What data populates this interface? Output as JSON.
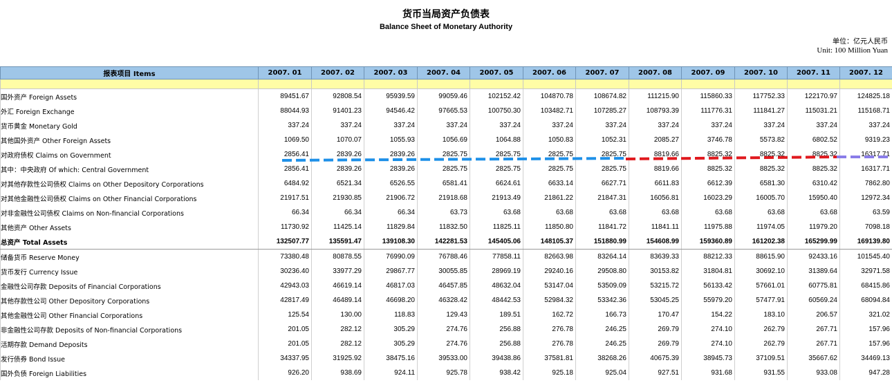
{
  "title_cn": "货币当局资产负债表",
  "title_en": "Balance Sheet of  Monetary Authority",
  "unit_cn": "单位：亿元人民币",
  "unit_en": "Unit: 100 Million Yuan",
  "header": {
    "items_label": "报表项目 Items",
    "months": [
      "2007. 01",
      "2007. 02",
      "2007. 03",
      "2007. 04",
      "2007. 05",
      "2007. 06",
      "2007. 07",
      "2007. 08",
      "2007. 09",
      "2007. 10",
      "2007. 11",
      "2007. 12"
    ]
  },
  "rows": [
    {
      "label": "国外资产  Foreign Assets",
      "indent": 0,
      "values": [
        "89451.67",
        "92808.54",
        "95939.59",
        "99059.46",
        "102152.42",
        "104870.78",
        "108674.82",
        "111215.90",
        "115860.33",
        "117752.33",
        "122170.97",
        "124825.18"
      ]
    },
    {
      "label": "外汇  Foreign Exchange",
      "indent": 1,
      "values": [
        "88044.93",
        "91401.23",
        "94546.42",
        "97665.53",
        "100750.30",
        "103482.71",
        "107285.27",
        "108793.39",
        "111776.31",
        "111841.27",
        "115031.21",
        "115168.71"
      ]
    },
    {
      "label": "货币黄金  Monetary Gold",
      "indent": 1,
      "values": [
        "337.24",
        "337.24",
        "337.24",
        "337.24",
        "337.24",
        "337.24",
        "337.24",
        "337.24",
        "337.24",
        "337.24",
        "337.24",
        "337.24"
      ]
    },
    {
      "label": "其他国外资产  Other Foreign Assets",
      "indent": 1,
      "values": [
        "1069.50",
        "1070.07",
        "1055.93",
        "1056.69",
        "1064.88",
        "1050.83",
        "1052.31",
        "2085.27",
        "3746.78",
        "5573.82",
        "6802.52",
        "9319.23"
      ]
    },
    {
      "label": "对政府债权  Claims on Government",
      "indent": 0,
      "values": [
        "2856.41",
        "2839.26",
        "2839.26",
        "2825.75",
        "2825.75",
        "2825.75",
        "2825.75",
        "8819.66",
        "8825.32",
        "8825.32",
        "8825.32",
        "16317.71"
      ]
    },
    {
      "label": "其中：中央政府  Of which: Central Government",
      "indent": 1,
      "values": [
        "2856.41",
        "2839.26",
        "2839.26",
        "2825.75",
        "2825.75",
        "2825.75",
        "2825.75",
        "8819.66",
        "8825.32",
        "8825.32",
        "8825.32",
        "16317.71"
      ]
    },
    {
      "label": "对其他存款性公司债权  Claims on Other Depository Corporations",
      "indent": 0,
      "values": [
        "6484.92",
        "6521.34",
        "6526.55",
        "6581.41",
        "6624.61",
        "6633.14",
        "6627.71",
        "6611.83",
        "6612.39",
        "6581.30",
        "6310.42",
        "7862.80"
      ]
    },
    {
      "label": "对其他金融性公司债权  Claims on Other Financial Corporations",
      "indent": 0,
      "values": [
        "21917.51",
        "21930.85",
        "21906.72",
        "21918.68",
        "21913.49",
        "21861.22",
        "21847.31",
        "16056.81",
        "16023.29",
        "16005.70",
        "15950.40",
        "12972.34"
      ]
    },
    {
      "label": "对非金融性公司债权  Claims on Non-financial Corporations",
      "indent": 0,
      "values": [
        "66.34",
        "66.34",
        "66.34",
        "63.73",
        "63.68",
        "63.68",
        "63.68",
        "63.68",
        "63.68",
        "63.68",
        "63.68",
        "63.59"
      ]
    },
    {
      "label": "其他资产  Other Assets",
      "indent": 0,
      "values": [
        "11730.92",
        "11425.14",
        "11829.84",
        "11832.50",
        "11825.11",
        "11850.80",
        "11841.72",
        "11841.11",
        "11975.88",
        "11974.05",
        "11979.20",
        "7098.18"
      ]
    },
    {
      "label": "总资产  Total Assets",
      "indent": -1,
      "total": true,
      "values": [
        "132507.77",
        "135591.47",
        "139108.30",
        "142281.53",
        "145405.06",
        "148105.37",
        "151880.99",
        "154608.99",
        "159360.89",
        "161202.38",
        "165299.99",
        "169139.80"
      ]
    },
    {
      "label": "储备货币  Reserve Money",
      "indent": 0,
      "values": [
        "73380.48",
        "80878.55",
        "76990.09",
        "76788.46",
        "77858.11",
        "82663.98",
        "83264.14",
        "83639.33",
        "88212.33",
        "88615.90",
        "92433.16",
        "101545.40"
      ]
    },
    {
      "label": "货币发行  Currency Issue",
      "indent": 1,
      "values": [
        "30236.40",
        "33977.29",
        "29867.77",
        "30055.85",
        "28969.19",
        "29240.16",
        "29508.80",
        "30153.82",
        "31804.81",
        "30692.10",
        "31389.64",
        "32971.58"
      ]
    },
    {
      "label": "金融性公司存款  Deposits of Financial Corporations",
      "indent": 1,
      "values": [
        "42943.03",
        "46619.14",
        "46817.03",
        "46457.85",
        "48632.04",
        "53147.04",
        "53509.09",
        "53215.72",
        "56133.42",
        "57661.01",
        "60775.81",
        "68415.86"
      ]
    },
    {
      "label": "其他存款性公司  Other Depository Corporations",
      "indent": 2,
      "values": [
        "42817.49",
        "46489.14",
        "46698.20",
        "46328.42",
        "48442.53",
        "52984.32",
        "53342.36",
        "53045.25",
        "55979.20",
        "57477.91",
        "60569.24",
        "68094.84"
      ]
    },
    {
      "label": "其他金融性公司  Other Financial Corporations",
      "indent": 2,
      "values": [
        "125.54",
        "130.00",
        "118.83",
        "129.43",
        "189.51",
        "162.72",
        "166.73",
        "170.47",
        "154.22",
        "183.10",
        "206.57",
        "321.02"
      ]
    },
    {
      "label": "非金融性公司存款  Deposits of  Non-financial Corporations",
      "indent": 1,
      "values": [
        "201.05",
        "282.12",
        "305.29",
        "274.76",
        "256.88",
        "276.78",
        "246.25",
        "269.79",
        "274.10",
        "262.79",
        "267.71",
        "157.96"
      ]
    },
    {
      "label": "活期存款  Demand Deposits",
      "indent": 2,
      "values": [
        "201.05",
        "282.12",
        "305.29",
        "274.76",
        "256.88",
        "276.78",
        "246.25",
        "269.79",
        "274.10",
        "262.79",
        "267.71",
        "157.96"
      ]
    },
    {
      "label": "发行债券  Bond Issue",
      "indent": 0,
      "values": [
        "34337.95",
        "31925.92",
        "38475.16",
        "39533.00",
        "39438.86",
        "37581.81",
        "38268.26",
        "40675.39",
        "38945.73",
        "37109.51",
        "35667.62",
        "34469.13"
      ]
    },
    {
      "label": "国外负债  Foreign Liabilities",
      "indent": 0,
      "values": [
        "926.20",
        "938.69",
        "924.11",
        "925.78",
        "938.42",
        "925.18",
        "925.04",
        "927.51",
        "931.68",
        "931.55",
        "933.08",
        "947.28"
      ]
    }
  ],
  "colors": {
    "blue_dash": "#1e90e8",
    "red_dash": "#e0191e",
    "purple_dash": "#8a7de8",
    "header_bg": "#9fc6e8",
    "band_bg": "#fffda6"
  }
}
